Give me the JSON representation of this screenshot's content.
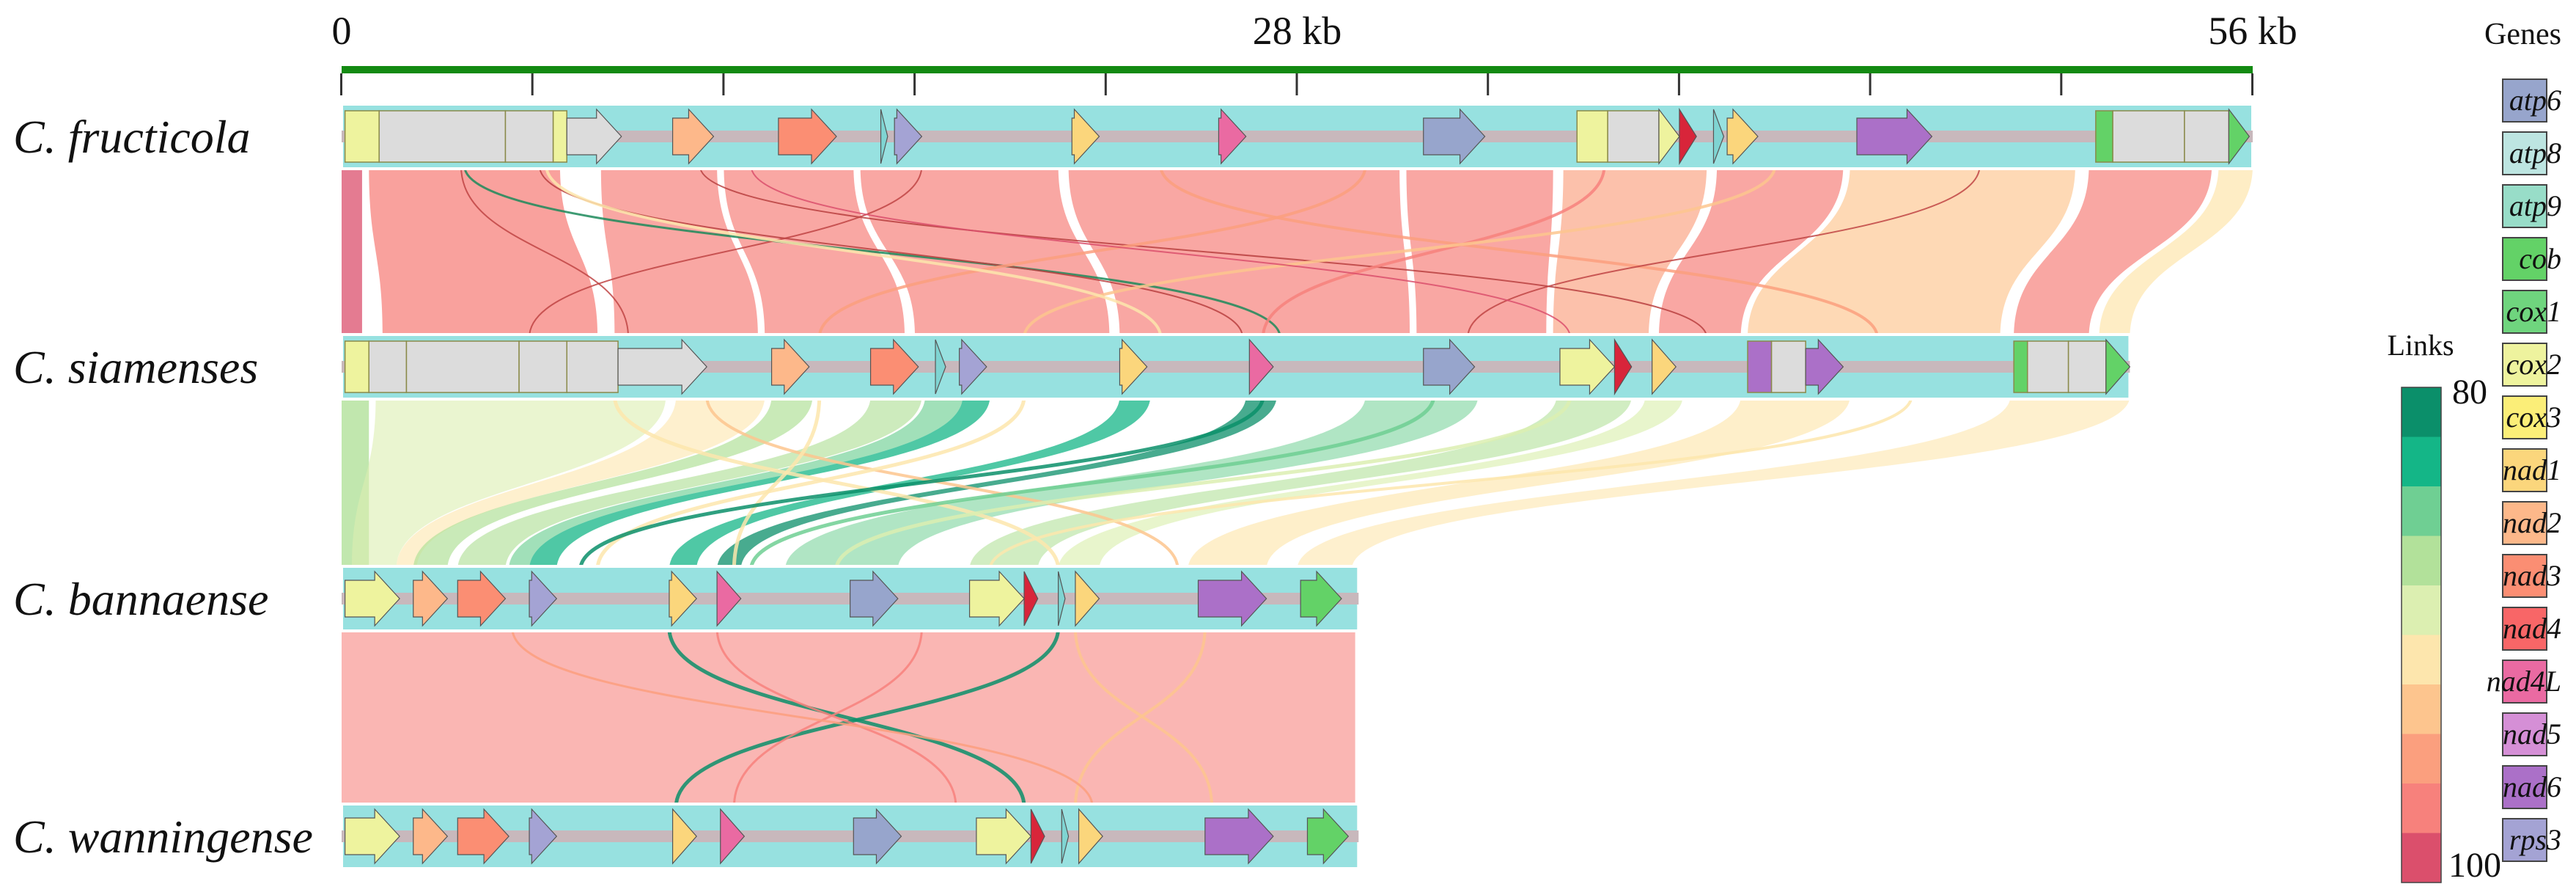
{
  "scale": {
    "ticks": [
      {
        "value": 0,
        "label": "0"
      },
      {
        "value": 28,
        "label": "28 kb"
      },
      {
        "value": 56,
        "label": "56 kb"
      }
    ],
    "max_kb": 56,
    "bar_color": "#138a12"
  },
  "genomes": [
    {
      "label": "C. fructicola",
      "length_kb": 56.0
    },
    {
      "label": "C. siamenses",
      "length_kb": 52.4
    },
    {
      "label": "C. bannaense",
      "length_kb": 29.8
    },
    {
      "label": "C. wanningense",
      "length_kb": 29.8
    }
  ],
  "genes_legend": {
    "title": "Genes",
    "items": [
      {
        "name": "atp6",
        "color": "#97a5cc"
      },
      {
        "name": "atp8",
        "color": "#bde5e1"
      },
      {
        "name": "atp9",
        "color": "#98ddc8"
      },
      {
        "name": "cob",
        "color": "#63d267"
      },
      {
        "name": "cox1",
        "color": "#6fd57e"
      },
      {
        "name": "cox2",
        "color": "#eef39e"
      },
      {
        "name": "cox3",
        "color": "#fbee78"
      },
      {
        "name": "nad1",
        "color": "#fbd67c"
      },
      {
        "name": "nad2",
        "color": "#fdb88a"
      },
      {
        "name": "nad3",
        "color": "#fb8e73"
      },
      {
        "name": "nad4",
        "color": "#f86667"
      },
      {
        "name": "nad4L",
        "color": "#ea6aa2"
      },
      {
        "name": "nad5",
        "color": "#d58fd6"
      },
      {
        "name": "nad6",
        "color": "#ab70c8"
      },
      {
        "name": "rps3",
        "color": "#a4a3d4"
      }
    ]
  },
  "links_legend": {
    "title": "Links",
    "min_label": "80",
    "max_label": "100",
    "colors": [
      "#0b8f6a",
      "#14b687",
      "#6fcf93",
      "#b2e19a",
      "#dcefb1",
      "#fde6ad",
      "#fdc58e",
      "#fb9f7e",
      "#f7817c",
      "#db4f6c"
    ]
  },
  "track_color": "#97e1e0",
  "spine_color": "#c8b8bc",
  "unassigned_gene_color": "#dcdcdc"
}
